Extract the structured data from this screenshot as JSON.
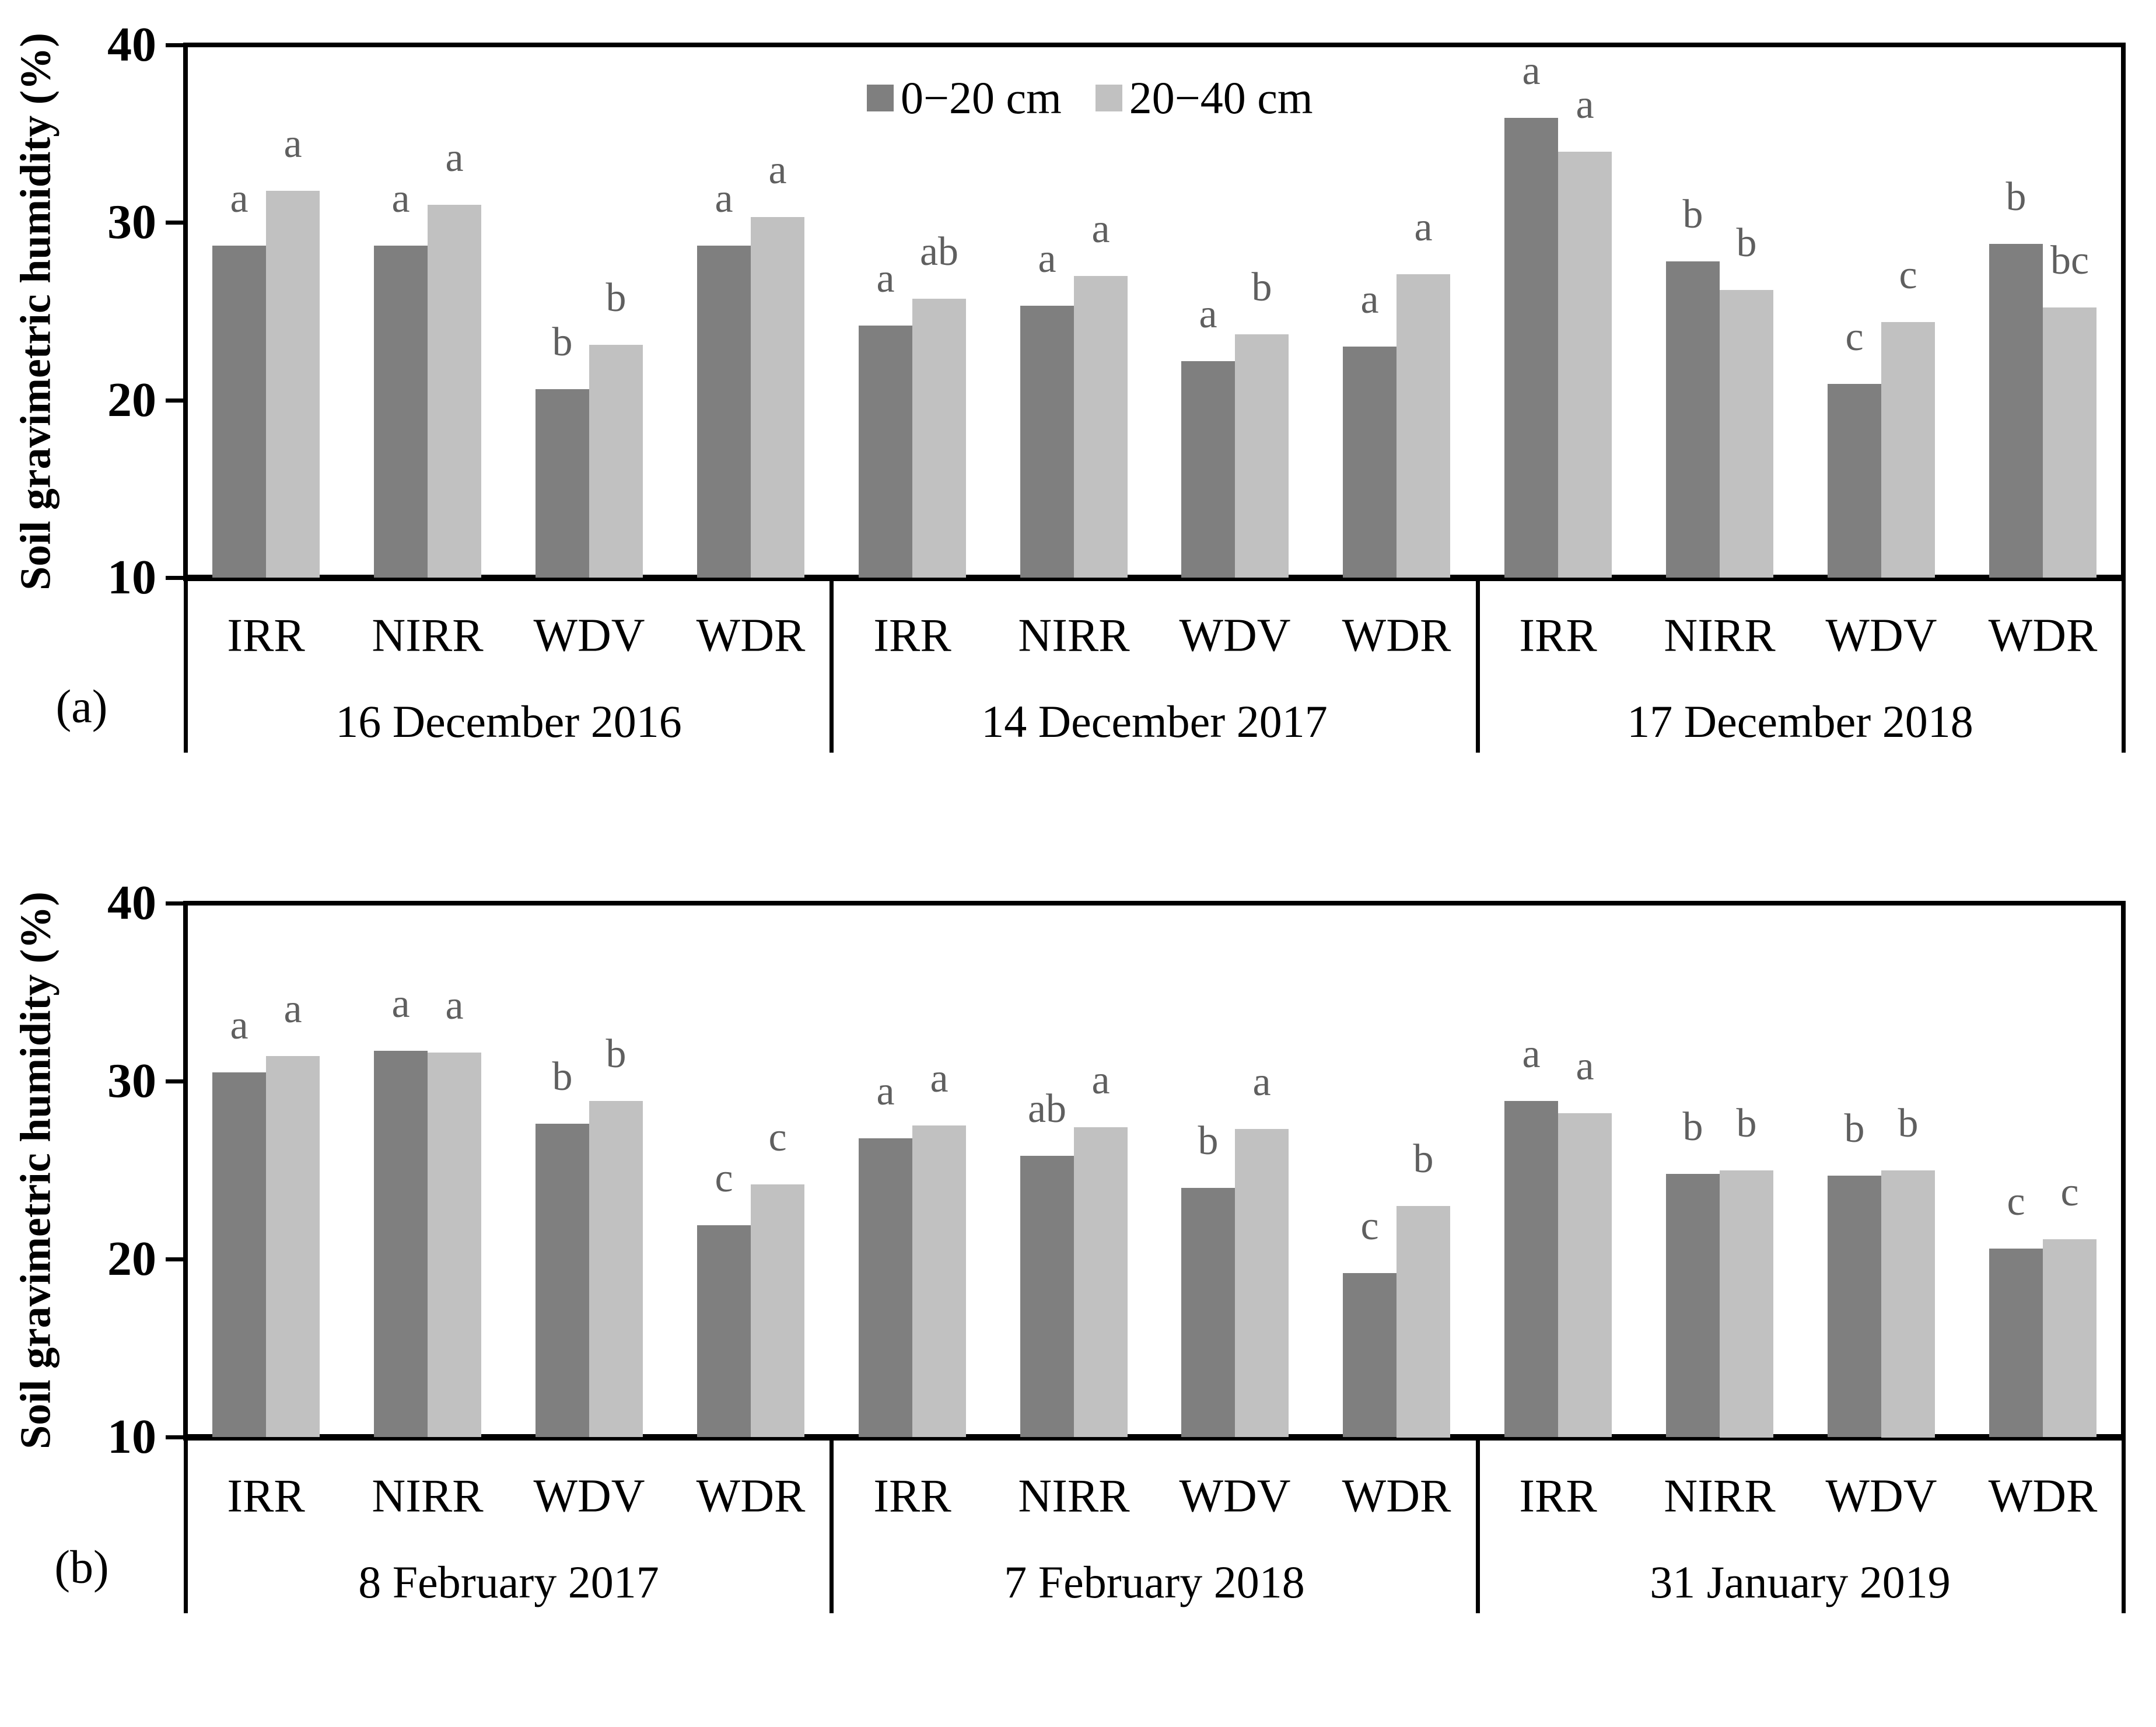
{
  "figure": {
    "ylabel": "Soil gravimetric humidity (%)",
    "panel_labels": {
      "a": "(a)",
      "b": "(b)"
    },
    "legend": {
      "items": [
        {
          "label": "0−20 cm",
          "color": "#7f7f7f"
        },
        {
          "label": "20−40 cm",
          "color": "#c1c1c1"
        }
      ]
    },
    "colors": {
      "bar_dark": "#7f7f7f",
      "bar_light": "#c1c1c1",
      "letter": "#5f5f5f",
      "axis": "#000000"
    }
  },
  "chart_data": [
    {
      "id": "a",
      "type": "bar",
      "panel_label": "(a)",
      "ylabel": "Soil gravimetric humidity (%)",
      "ylim": [
        10,
        40
      ],
      "yticks": [
        10,
        20,
        30,
        40
      ],
      "legend_visible": true,
      "series": [
        "0−20 cm",
        "20−40 cm"
      ],
      "treatments": [
        "IRR",
        "NIRR",
        "WDV",
        "WDR"
      ],
      "panels": [
        {
          "date": "16 December 2016",
          "groups": [
            {
              "treatment": "IRR",
              "values": [
                28.7,
                31.8
              ],
              "letters": [
                "a",
                "a"
              ]
            },
            {
              "treatment": "NIRR",
              "values": [
                28.7,
                31.0
              ],
              "letters": [
                "a",
                "a"
              ]
            },
            {
              "treatment": "WDV",
              "values": [
                20.6,
                23.1
              ],
              "letters": [
                "b",
                "b"
              ]
            },
            {
              "treatment": "WDR",
              "values": [
                28.7,
                30.3
              ],
              "letters": [
                "a",
                "a"
              ]
            }
          ]
        },
        {
          "date": "14 December 2017",
          "groups": [
            {
              "treatment": "IRR",
              "values": [
                24.2,
                25.7
              ],
              "letters": [
                "a",
                "ab"
              ]
            },
            {
              "treatment": "NIRR",
              "values": [
                25.3,
                27.0
              ],
              "letters": [
                "a",
                "a"
              ]
            },
            {
              "treatment": "WDV",
              "values": [
                22.2,
                23.7
              ],
              "letters": [
                "a",
                "b"
              ]
            },
            {
              "treatment": "WDR",
              "values": [
                23.0,
                27.1
              ],
              "letters": [
                "a",
                "a"
              ]
            }
          ]
        },
        {
          "date": "17 December 2018",
          "groups": [
            {
              "treatment": "IRR",
              "values": [
                35.9,
                34.0
              ],
              "letters": [
                "a",
                "a"
              ]
            },
            {
              "treatment": "NIRR",
              "values": [
                27.8,
                26.2
              ],
              "letters": [
                "b",
                "b"
              ]
            },
            {
              "treatment": "WDV",
              "values": [
                20.9,
                24.4
              ],
              "letters": [
                "c",
                "c"
              ]
            },
            {
              "treatment": "WDR",
              "values": [
                28.8,
                25.2
              ],
              "letters": [
                "b",
                "bc"
              ]
            }
          ]
        }
      ]
    },
    {
      "id": "b",
      "type": "bar",
      "panel_label": "(b)",
      "ylabel": "Soil gravimetric humidity (%)",
      "ylim": [
        10,
        40
      ],
      "yticks": [
        10,
        20,
        30,
        40
      ],
      "legend_visible": false,
      "series": [
        "0−20 cm",
        "20−40 cm"
      ],
      "treatments": [
        "IRR",
        "NIRR",
        "WDV",
        "WDR"
      ],
      "panels": [
        {
          "date": "8 February 2017",
          "groups": [
            {
              "treatment": "IRR",
              "values": [
                30.5,
                31.4
              ],
              "letters": [
                "a",
                "a"
              ]
            },
            {
              "treatment": "NIRR",
              "values": [
                31.7,
                31.6
              ],
              "letters": [
                "a",
                "a"
              ]
            },
            {
              "treatment": "WDV",
              "values": [
                27.6,
                28.9
              ],
              "letters": [
                "b",
                "b"
              ]
            },
            {
              "treatment": "WDR",
              "values": [
                21.9,
                24.2
              ],
              "letters": [
                "c",
                "c"
              ]
            }
          ]
        },
        {
          "date": "7 February 2018",
          "groups": [
            {
              "treatment": "IRR",
              "values": [
                26.8,
                27.5
              ],
              "letters": [
                "a",
                "a"
              ]
            },
            {
              "treatment": "NIRR",
              "values": [
                25.8,
                27.4
              ],
              "letters": [
                "ab",
                "a"
              ]
            },
            {
              "treatment": "WDV",
              "values": [
                24.0,
                27.3
              ],
              "letters": [
                "b",
                "a"
              ]
            },
            {
              "treatment": "WDR",
              "values": [
                19.2,
                23.0
              ],
              "letters": [
                "c",
                "b"
              ]
            }
          ]
        },
        {
          "date": "31 January 2019",
          "groups": [
            {
              "treatment": "IRR",
              "values": [
                28.9,
                28.2
              ],
              "letters": [
                "a",
                "a"
              ]
            },
            {
              "treatment": "NIRR",
              "values": [
                24.8,
                25.0
              ],
              "letters": [
                "b",
                "b"
              ]
            },
            {
              "treatment": "WDV",
              "values": [
                24.7,
                25.0
              ],
              "letters": [
                "b",
                "b"
              ]
            },
            {
              "treatment": "WDR",
              "values": [
                20.6,
                21.1
              ],
              "letters": [
                "c",
                "c"
              ]
            }
          ]
        }
      ]
    }
  ]
}
